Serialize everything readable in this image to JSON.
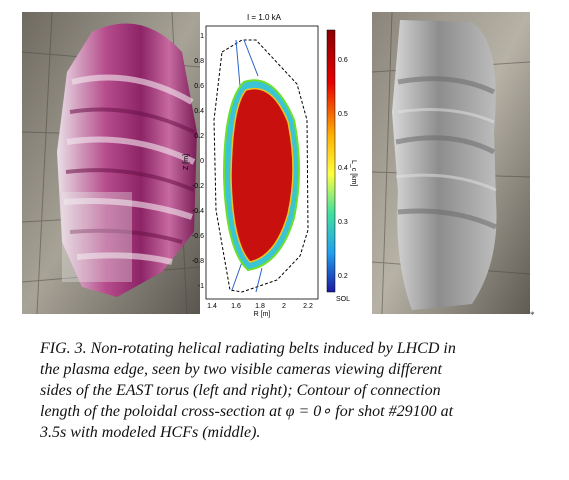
{
  "figure": {
    "panel_title": "I = 1.0 kA",
    "xlabel": "R [m]",
    "ylabel": "Z [m]",
    "colorbar_label": "L_c [km]",
    "colorbar_bottom_label": "SOL",
    "x_ticks": [
      "1.4",
      "1.6",
      "1.8",
      "2",
      "2.2"
    ],
    "y_ticks": [
      "1",
      "0.8",
      "0.6",
      "0.4",
      "0.2",
      "0",
      "-0.2",
      "-0.4",
      "-0.6",
      "-0.8",
      "-1"
    ],
    "colorbar_ticks": [
      "0.6",
      "0.5",
      "0.4",
      "0.3",
      "0.2"
    ],
    "colors": {
      "core": "#c8100f",
      "left_cam": "#9b2f72",
      "right_cam": "#8d8d8d"
    }
  },
  "caption": {
    "line1": "FIG. 3. Non-rotating helical radiating belts induced by LHCD in",
    "line2": "the plasma edge, seen by two visible cameras viewing different",
    "line3": "sides of the EAST torus (left and right); Contour of connection",
    "line4": "length of the poloidal cross-section at φ = 0∘ for shot #29100 at",
    "line5": "3.5s with modeled HCFs (middle)."
  },
  "marker": "*"
}
